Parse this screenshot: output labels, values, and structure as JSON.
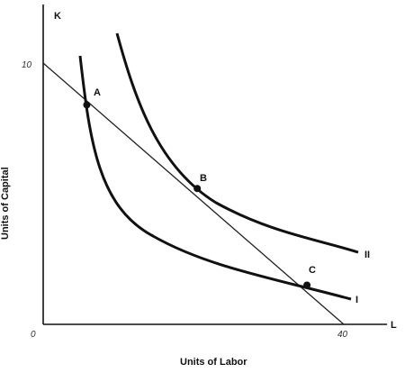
{
  "axes": {
    "y_label": "K",
    "x_label": "L",
    "y_title": "Units of Capital",
    "x_title": "Units of Labor",
    "origin_label": "0",
    "y_tick": "10",
    "x_tick": "40"
  },
  "points": [
    {
      "name": "A",
      "L": 5.8,
      "K": 8.4
    },
    {
      "name": "B",
      "L": 20.5,
      "K": 5.2
    },
    {
      "name": "C",
      "L": 35.1,
      "K": 1.5
    }
  ],
  "curves": [
    {
      "name": "I",
      "label": "I"
    },
    {
      "name": "II",
      "label": "II"
    }
  ],
  "budget_line": {
    "K_intercept": 10,
    "L_intercept": 40
  }
}
